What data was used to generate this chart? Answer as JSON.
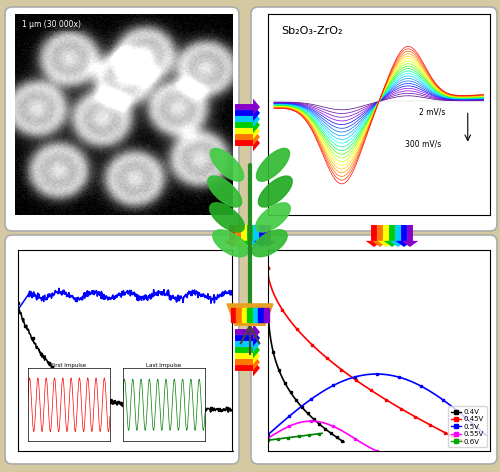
{
  "background_color": "#d4c9a0",
  "title_text": "Sb₂O₃-ZrO₂",
  "cv_colors": [
    "#4b0082",
    "#6600aa",
    "#7700cc",
    "#8800ee",
    "#0000ff",
    "#0033ff",
    "#0066ff",
    "#0099ff",
    "#00ccff",
    "#00ffee",
    "#00ff99",
    "#00ff44",
    "#44ff00",
    "#99ff00",
    "#ccff00",
    "#ffff00",
    "#ffcc00",
    "#ff9900",
    "#ff6600",
    "#ff3300",
    "#ff0000"
  ],
  "scan_rate_label_1": "2 mV/s",
  "scan_rate_label_2": "300 mV/s",
  "legend_labels": [
    "0.4V",
    "0.45V",
    "0.5V",
    "0.55V",
    "0.6V"
  ],
  "legend_colors": [
    "#000000",
    "#ff0000",
    "#0000ff",
    "#ff00ff",
    "#00aa00"
  ],
  "rainbow": [
    "#ff0000",
    "#ff7700",
    "#ffff00",
    "#00cc00",
    "#00ccff",
    "#0000ff",
    "#8800cc"
  ],
  "rainbow_rev": [
    "#8800cc",
    "#0000ff",
    "#00ccff",
    "#00cc00",
    "#ffff00",
    "#ff7700",
    "#ff0000"
  ]
}
